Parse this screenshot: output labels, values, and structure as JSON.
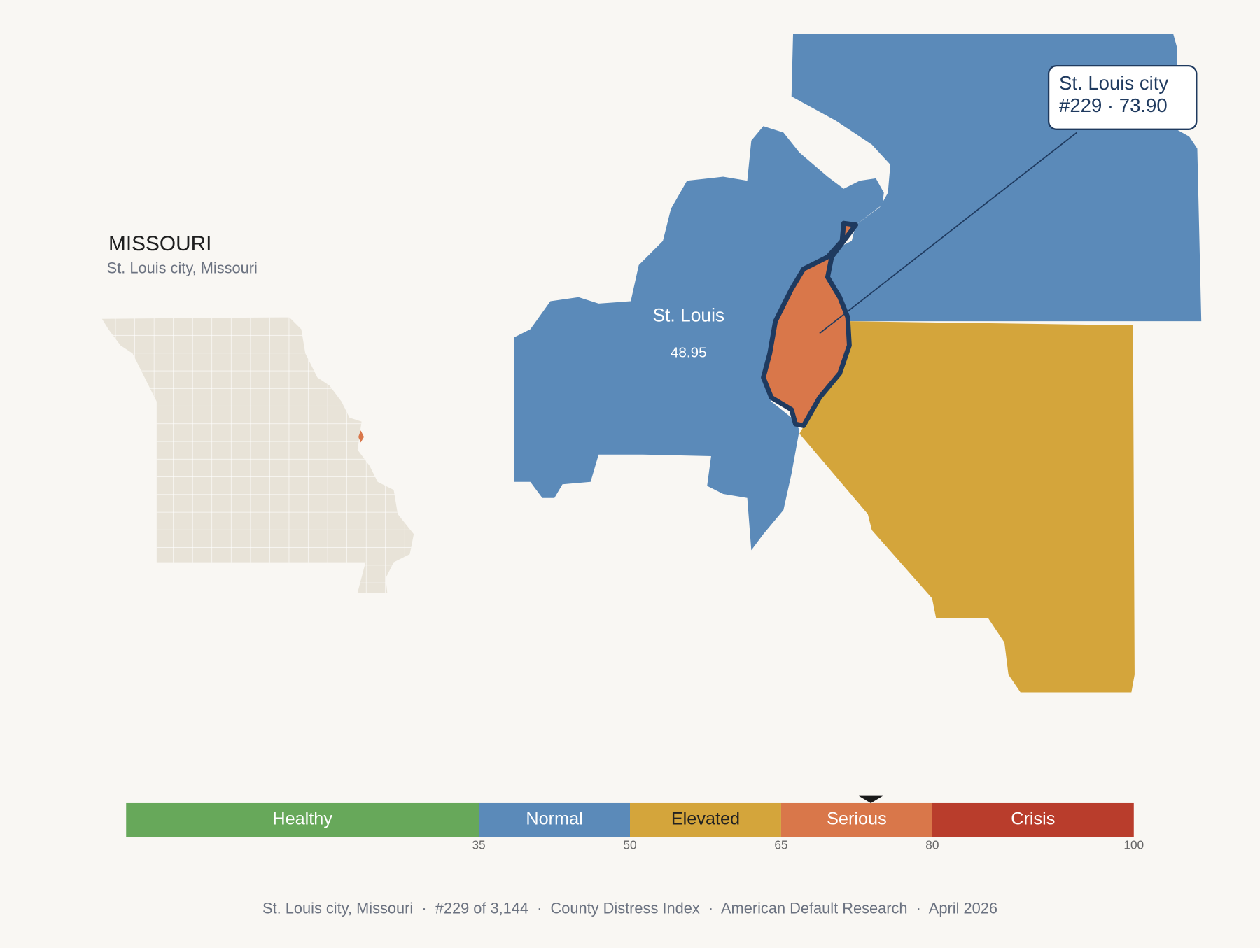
{
  "header": {
    "title": "MISSOURI",
    "subtitle": "St. Louis city, Missouri"
  },
  "map": {
    "counties": [
      {
        "name": "St. Louis",
        "value": 48.95,
        "color": "#5b8ab9"
      },
      {
        "name": "St. Louis city",
        "color": "#d9774a"
      }
    ],
    "tooltip": {
      "title": "St. Louis city",
      "text": "#229 · 73.90"
    }
  },
  "chart_data": {
    "type": "scale",
    "lim": [
      0,
      100
    ],
    "ticks": [
      35,
      50,
      65,
      80,
      100
    ],
    "bands": [
      {
        "name": "Healthy",
        "color": "#67a85a",
        "label_color": "#ffffff"
      },
      {
        "name": "Normal",
        "color": "#5b8ab9",
        "label_color": "#ffffff"
      },
      {
        "name": "Elevated",
        "color": "#d4a53b",
        "label_color": "#222222"
      },
      {
        "name": "Serious",
        "color": "#d9774a",
        "label_color": "#ffffff"
      },
      {
        "name": "Crisis",
        "color": "#b93d2c",
        "label_color": "#ffffff"
      }
    ],
    "marker": 73.9
  },
  "footer": "St. Louis city, Missouri  ·  #229 of 3,144  ·  County Distress Index  ·  American Default Research  ·  April 2026"
}
